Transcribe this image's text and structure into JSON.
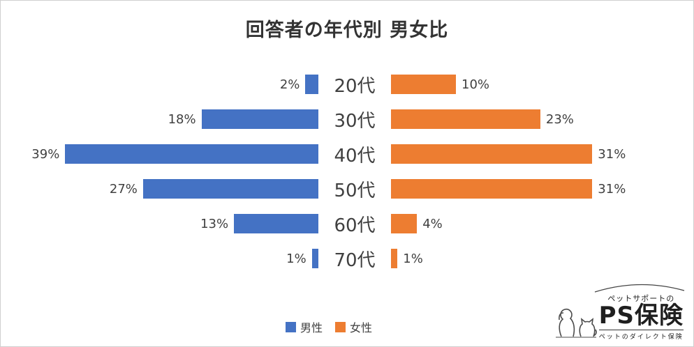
{
  "chart_data": {
    "type": "bar",
    "variant": "butterfly",
    "title": "回答者の年代別 男女比",
    "categories": [
      "20代",
      "30代",
      "40代",
      "50代",
      "60代",
      "70代"
    ],
    "series": [
      {
        "name": "男性",
        "color": "#4472C4",
        "values": [
          2,
          18,
          39,
          27,
          13,
          1
        ]
      },
      {
        "name": "女性",
        "color": "#ED7D31",
        "values": [
          10,
          23,
          31,
          31,
          4,
          1
        ]
      }
    ],
    "value_suffix": "%",
    "xlim": [
      0,
      39
    ],
    "legend_position": "bottom",
    "grid": false
  },
  "logo": {
    "tagline_top": "ペットサポートの",
    "brand": "PS保険",
    "tagline_bottom": "ペットのダイレクト保険"
  }
}
